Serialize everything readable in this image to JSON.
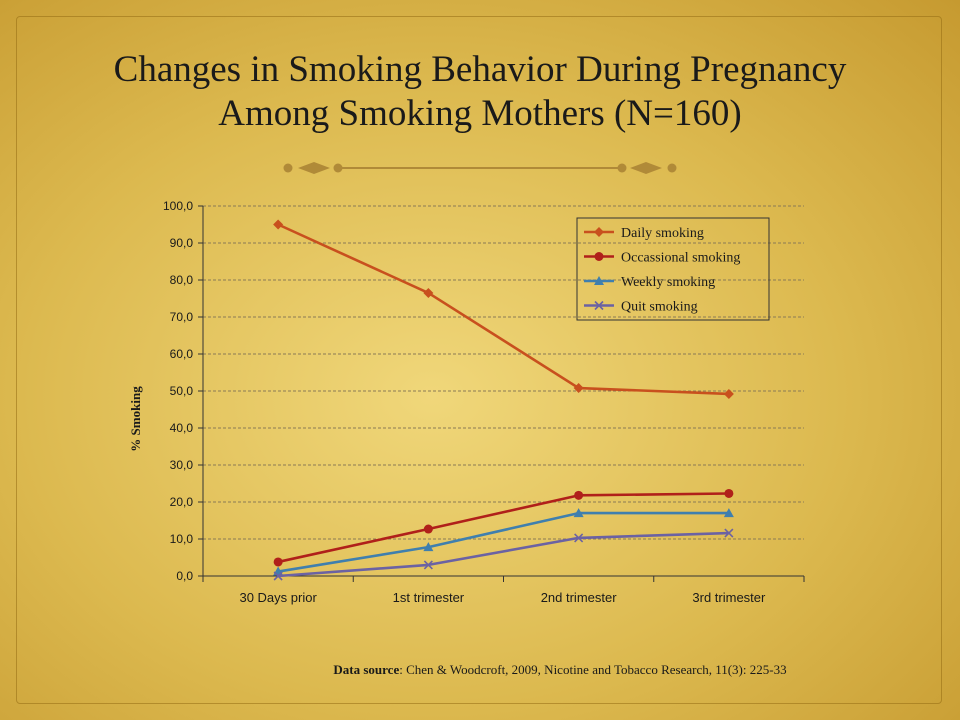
{
  "slide": {
    "title_line1": "Changes in Smoking Behavior During Pregnancy",
    "title_line2": "Among Smoking Mothers (N=160)",
    "source_label": "Data source",
    "source_text": ": Chen & Woodcroft, 2009, Nicotine and Tobacco Research, 11(3): 225-33"
  },
  "chart_data": {
    "type": "line",
    "title": "",
    "xlabel": "",
    "ylabel": "% Smoking",
    "categories": [
      "30 Days prior",
      "1st trimester",
      "2nd trimester",
      "3rd trimester"
    ],
    "ylim": [
      0,
      100
    ],
    "yticks": [
      "0,0",
      "10,0",
      "20,0",
      "30,0",
      "40,0",
      "50,0",
      "60,0",
      "70,0",
      "80,0",
      "90,0",
      "100,0"
    ],
    "grid": true,
    "legend": "top-right",
    "series": [
      {
        "name": "Daily smoking",
        "values": [
          95.0,
          76.5,
          50.8,
          49.2
        ],
        "color": "#c8501e",
        "marker": "diamond"
      },
      {
        "name": "Occassional smoking",
        "values": [
          3.8,
          12.7,
          21.8,
          22.3
        ],
        "color": "#b0201a",
        "marker": "circle"
      },
      {
        "name": "Weekly smoking",
        "values": [
          1.2,
          7.8,
          17.0,
          17.0
        ],
        "color": "#3f7fae",
        "marker": "triangle"
      },
      {
        "name": "Quit smoking",
        "values": [
          0.0,
          3.0,
          10.3,
          11.6
        ],
        "color": "#6b62a3",
        "marker": "x"
      }
    ]
  }
}
